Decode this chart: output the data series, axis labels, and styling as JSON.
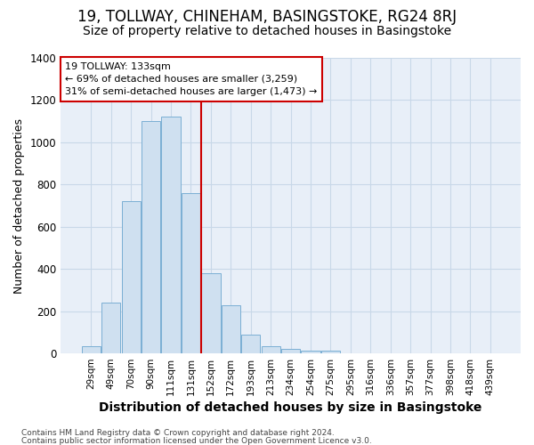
{
  "title": "19, TOLLWAY, CHINEHAM, BASINGSTOKE, RG24 8RJ",
  "subtitle": "Size of property relative to detached houses in Basingstoke",
  "xlabel": "Distribution of detached houses by size in Basingstoke",
  "ylabel": "Number of detached properties",
  "footer_line1": "Contains HM Land Registry data © Crown copyright and database right 2024.",
  "footer_line2": "Contains public sector information licensed under the Open Government Licence v3.0.",
  "categories": [
    "29sqm",
    "49sqm",
    "70sqm",
    "90sqm",
    "111sqm",
    "131sqm",
    "152sqm",
    "172sqm",
    "193sqm",
    "213sqm",
    "234sqm",
    "254sqm",
    "275sqm",
    "295sqm",
    "316sqm",
    "336sqm",
    "357sqm",
    "377sqm",
    "398sqm",
    "418sqm",
    "439sqm"
  ],
  "values": [
    35,
    240,
    720,
    1100,
    1120,
    760,
    380,
    230,
    90,
    35,
    20,
    15,
    15,
    0,
    0,
    0,
    0,
    0,
    0,
    0,
    0
  ],
  "bar_color": "#cfe0f0",
  "bar_edge_color": "#7bafd4",
  "vline_x": 5.5,
  "vline_color": "#cc0000",
  "annotation_title": "19 TOLLWAY: 133sqm",
  "annotation_line1": "← 69% of detached houses are smaller (3,259)",
  "annotation_line2": "31% of semi-detached houses are larger (1,473) →",
  "annotation_box_edgecolor": "#cc0000",
  "ylim": [
    0,
    1400
  ],
  "yticks": [
    0,
    200,
    400,
    600,
    800,
    1000,
    1200,
    1400
  ],
  "grid_color": "#c8d8e8",
  "plot_bg_color": "#e8eff8",
  "title_fontsize": 12,
  "subtitle_fontsize": 10,
  "xlabel_fontsize": 10,
  "ylabel_fontsize": 9
}
